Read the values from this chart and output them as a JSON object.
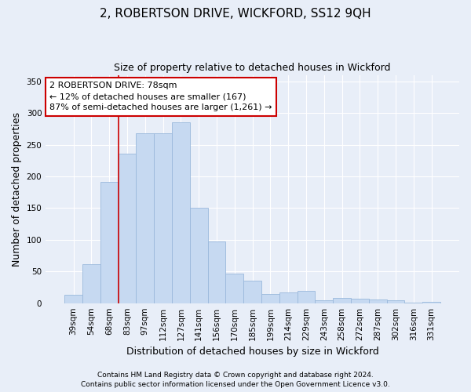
{
  "title": "2, ROBERTSON DRIVE, WICKFORD, SS12 9QH",
  "subtitle": "Size of property relative to detached houses in Wickford",
  "xlabel": "Distribution of detached houses by size in Wickford",
  "ylabel": "Number of detached properties",
  "categories": [
    "39sqm",
    "54sqm",
    "68sqm",
    "83sqm",
    "97sqm",
    "112sqm",
    "127sqm",
    "141sqm",
    "156sqm",
    "170sqm",
    "185sqm",
    "199sqm",
    "214sqm",
    "229sqm",
    "243sqm",
    "258sqm",
    "272sqm",
    "287sqm",
    "302sqm",
    "316sqm",
    "331sqm"
  ],
  "values": [
    13,
    62,
    191,
    236,
    268,
    268,
    285,
    150,
    97,
    47,
    35,
    15,
    17,
    19,
    4,
    8,
    7,
    6,
    5,
    1,
    2
  ],
  "bar_color": "#c6d9f1",
  "bar_edge_color": "#9ab8dc",
  "annotation_line1": "2 ROBERTSON DRIVE: 78sqm",
  "annotation_line2": "← 12% of detached houses are smaller (167)",
  "annotation_line3": "87% of semi-detached houses are larger (1,261) →",
  "annotation_box_facecolor": "#ffffff",
  "annotation_box_edgecolor": "#cc0000",
  "vline_x": 2.5,
  "vline_color": "#cc0000",
  "footer1": "Contains HM Land Registry data © Crown copyright and database right 2024.",
  "footer2": "Contains public sector information licensed under the Open Government Licence v3.0.",
  "bg_color": "#e8eef8",
  "plot_bg_color": "#e8eef8",
  "ylim": [
    0,
    360
  ],
  "yticks": [
    0,
    50,
    100,
    150,
    200,
    250,
    300,
    350
  ],
  "title_fontsize": 11,
  "subtitle_fontsize": 9,
  "axis_label_fontsize": 9,
  "tick_fontsize": 7.5,
  "footer_fontsize": 6.5
}
